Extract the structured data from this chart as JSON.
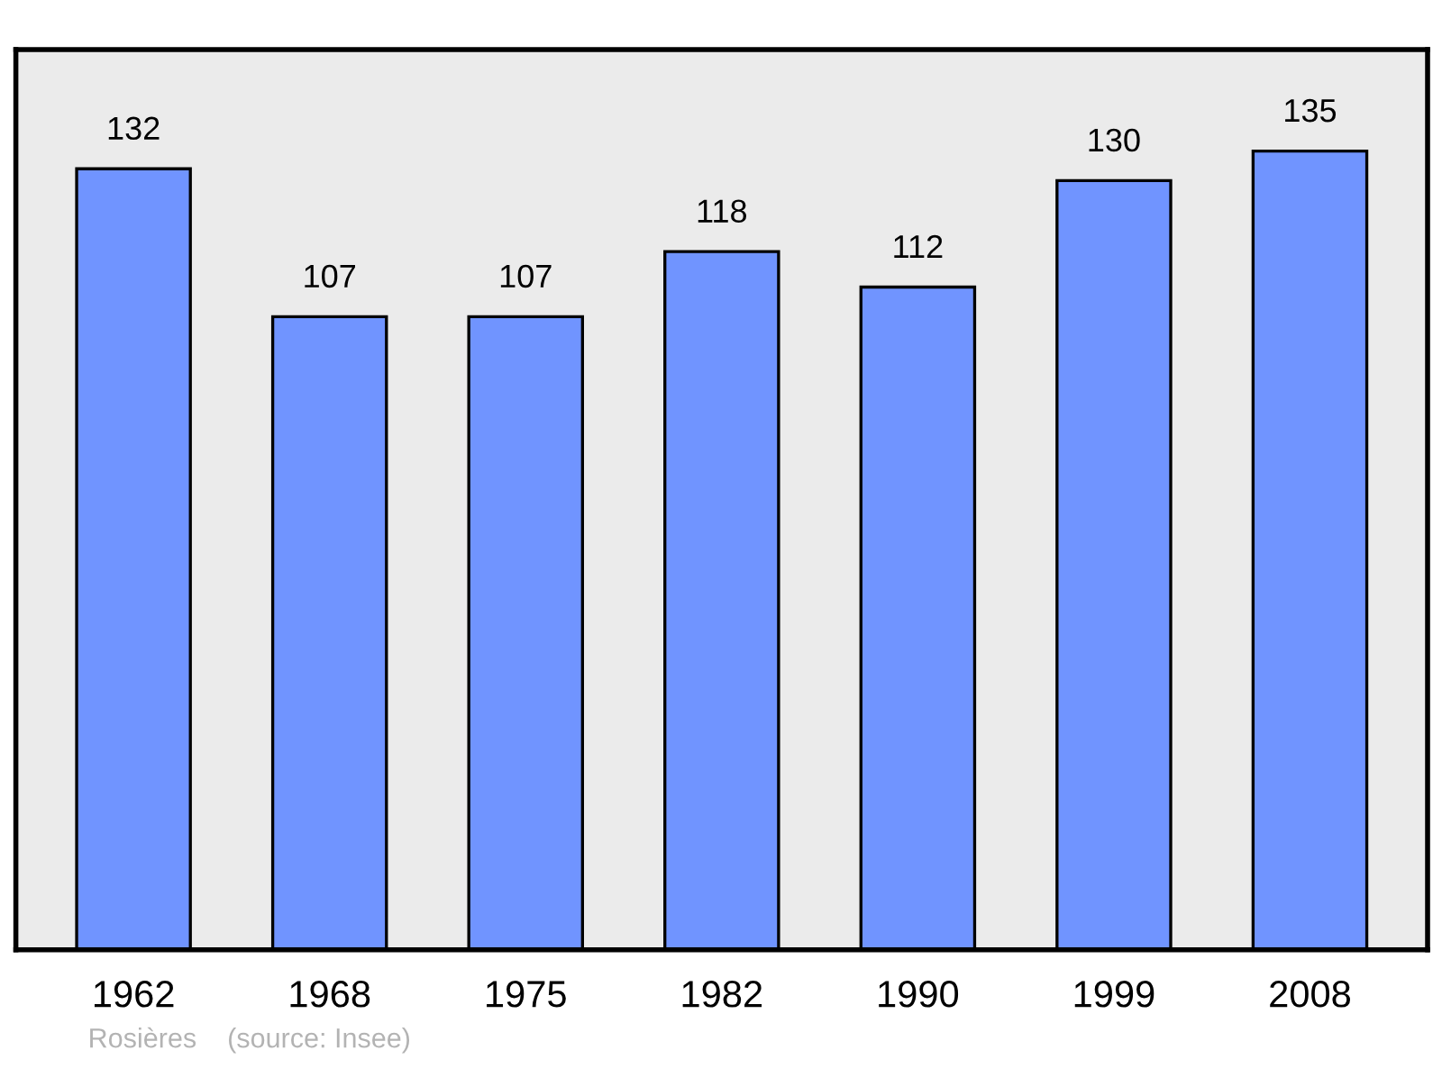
{
  "chart_data": {
    "type": "bar",
    "categories": [
      "1962",
      "1968",
      "1975",
      "1982",
      "1990",
      "1999",
      "2008"
    ],
    "values": [
      132,
      107,
      107,
      118,
      112,
      130,
      135
    ],
    "color": "#7094ff",
    "data_labels": true,
    "grid": false,
    "annotations": [
      "Rosières    (source: Insee)"
    ]
  }
}
